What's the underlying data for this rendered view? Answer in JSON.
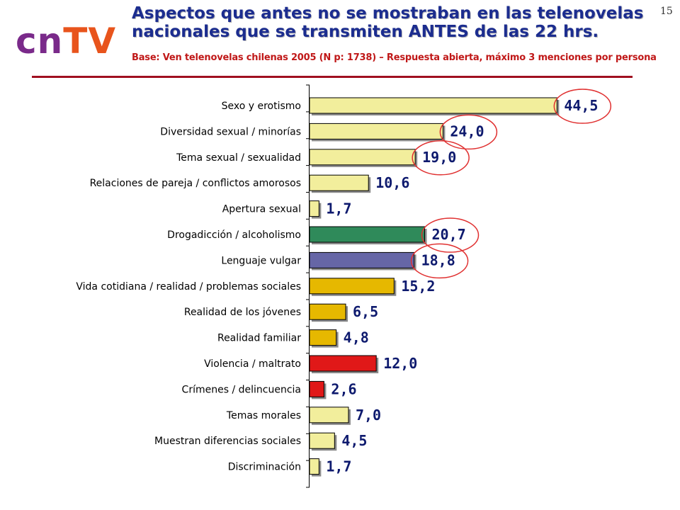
{
  "logo": {
    "part1": "cn",
    "part2": "TV"
  },
  "page_number": "15",
  "title": "Aspectos que antes no se mostraban en las telenovelas\nnacionales que se transmiten ANTES de las 22 hrs.",
  "subtitle": "Base: Ven telenovelas chilenas 2005 (N p: 1738) – Respuesta abierta, máximo 3 menciones por persona",
  "chart_data": {
    "type": "bar",
    "orientation": "horizontal",
    "categories": [
      "Sexo y erotismo",
      "Diversidad sexual / minorías",
      "Tema sexual / sexualidad",
      "Relaciones de pareja / conflictos amorosos",
      "Apertura sexual",
      "Drogadicción / alcoholismo",
      "Lenguaje vulgar",
      "Vida cotidiana / realidad / problemas sociales",
      "Realidad de los jóvenes",
      "Realidad familiar",
      "Violencia / maltrato",
      "Crímenes / delincuencia",
      "Temas morales",
      "Muestran diferencias sociales",
      "Discriminación"
    ],
    "values": [
      44.5,
      24.0,
      19.0,
      10.6,
      1.7,
      20.7,
      18.8,
      15.2,
      6.5,
      4.8,
      12.0,
      2.6,
      7.0,
      4.5,
      1.7
    ],
    "value_labels": [
      "44,5",
      "24,0",
      "19,0",
      "10,6",
      "1,7",
      "20,7",
      "18,8",
      "15,2",
      "6,5",
      "4,8",
      "12,0",
      "2,6",
      "7,0",
      "4,5",
      "1,7"
    ],
    "colors": [
      "#f2ee9c",
      "#f2ee9c",
      "#f2ee9c",
      "#f2ee9c",
      "#f2ee9c",
      "#2f8a5a",
      "#6666a6",
      "#e6b800",
      "#e6b800",
      "#e6b800",
      "#e01818",
      "#e01818",
      "#f2ee9c",
      "#f2ee9c",
      "#f2ee9c"
    ],
    "circled": [
      true,
      true,
      true,
      false,
      false,
      true,
      true,
      false,
      false,
      false,
      false,
      false,
      false,
      false,
      false
    ],
    "highlight_color": "#e03030",
    "xlim": [
      0,
      45
    ],
    "grid": false,
    "legend": "none"
  }
}
